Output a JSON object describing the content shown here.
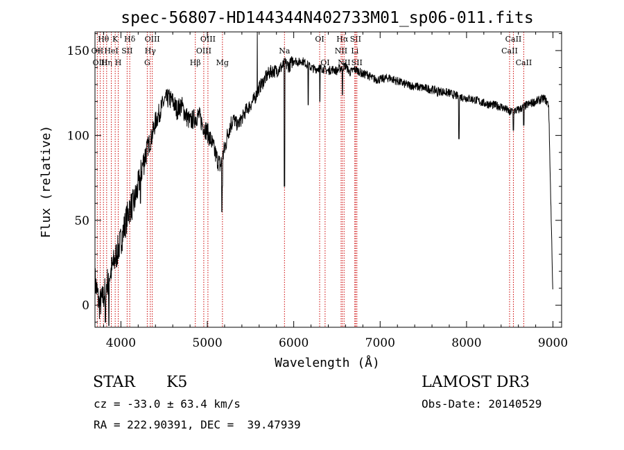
{
  "chart_data": {
    "type": "line",
    "title": "spec-56807-HD144344N402733M01_sp06-011.fits",
    "xlabel": "Wavelength (Å)",
    "ylabel": "Flux (relative)",
    "xlim": [
      3700,
      9100
    ],
    "ylim": [
      -13,
      161
    ],
    "xticks": [
      4000,
      5000,
      6000,
      7000,
      8000,
      9000
    ],
    "yticks": [
      0,
      50,
      100,
      150
    ],
    "grid": false,
    "line_color": "#000000",
    "marker_color": "#cc0000",
    "series": [
      {
        "x": [
          3700,
          3750,
          3800,
          3850,
          3900,
          3950,
          4000,
          4050,
          4100,
          4150,
          4200,
          4250,
          4300,
          4350,
          4400,
          4450,
          4500,
          4550,
          4600,
          4650,
          4700,
          4750,
          4800,
          4850,
          4900,
          4950,
          5000,
          5050,
          5100,
          5150,
          5200,
          5250,
          5300,
          5350,
          5400,
          5450,
          5500,
          5550,
          5600,
          5650,
          5700,
          5750,
          5800,
          5850,
          5900,
          5950,
          6000,
          6050,
          6100,
          6150,
          6200,
          6250,
          6300,
          6350,
          6400,
          6450,
          6500,
          6550,
          6600,
          6650,
          6700,
          6750,
          6800,
          6850,
          6900,
          6950,
          7000,
          7100,
          7200,
          7300,
          7400,
          7500,
          7600,
          7700,
          7800,
          7900,
          8000,
          8100,
          8200,
          8300,
          8400,
          8500,
          8600,
          8700,
          8800,
          8900,
          8950,
          9000
        ],
        "y": [
          15,
          0,
          5,
          15,
          22,
          30,
          38,
          48,
          57,
          60,
          70,
          82,
          92,
          98,
          108,
          114,
          120,
          122,
          120,
          115,
          118,
          112,
          108,
          110,
          112,
          106,
          102,
          96,
          88,
          82,
          92,
          104,
          110,
          106,
          110,
          115,
          118,
          122,
          128,
          132,
          136,
          138,
          138,
          140,
          142,
          141,
          145,
          143,
          144,
          142,
          140,
          139,
          140,
          139,
          138,
          139,
          138,
          140,
          141,
          137,
          139,
          138,
          136,
          136,
          134,
          133,
          133,
          134,
          132,
          130,
          129,
          128,
          127,
          126,
          125,
          123,
          122,
          121,
          119,
          118,
          117,
          114,
          115,
          118,
          120,
          122,
          118,
          5
        ],
        "absorption_dips": [
          {
            "x": 3820,
            "y": -10
          },
          {
            "x": 3860,
            "y": -12
          },
          {
            "x": 4227,
            "y": 60
          },
          {
            "x": 5170,
            "y": 55
          },
          {
            "x": 5175,
            "y": 70
          },
          {
            "x": 5893,
            "y": 70
          },
          {
            "x": 6168,
            "y": 118
          },
          {
            "x": 6302,
            "y": 120
          },
          {
            "x": 6563,
            "y": 124
          },
          {
            "x": 7665,
            "y": 123
          },
          {
            "x": 7912,
            "y": 98
          },
          {
            "x": 8498,
            "y": 112
          },
          {
            "x": 8542,
            "y": 103
          },
          {
            "x": 8662,
            "y": 106
          }
        ],
        "spike": {
          "x": 5577,
          "y": 161
        }
      }
    ],
    "line_markers": [
      {
        "label": "Hθ",
        "x": 3798,
        "row": 0
      },
      {
        "label": "OII",
        "x": 3727,
        "row": 1
      },
      {
        "label": "OIII",
        "x": 3760,
        "row": 2
      },
      {
        "label": "Hη",
        "x": 3835,
        "row": 2
      },
      {
        "label": "HeI",
        "x": 3889,
        "row": 1
      },
      {
        "label": "K",
        "x": 3934,
        "row": 0
      },
      {
        "label": "H",
        "x": 3969,
        "row": 2
      },
      {
        "label": "SII",
        "x": 4072,
        "row": 1
      },
      {
        "label": "Hδ",
        "x": 4102,
        "row": 0
      },
      {
        "label": "OIII",
        "x": 4363,
        "row": 0
      },
      {
        "label": "Hγ",
        "x": 4340,
        "row": 1
      },
      {
        "label": "G",
        "x": 4305,
        "row": 2
      },
      {
        "label": "Hβ",
        "x": 4861,
        "row": 2
      },
      {
        "label": "OIII",
        "x": 5007,
        "row": 0
      },
      {
        "label": "OIII",
        "x": 4959,
        "row": 1
      },
      {
        "label": "Mg",
        "x": 5175,
        "row": 2
      },
      {
        "label": "Na",
        "x": 5893,
        "row": 1
      },
      {
        "label": "OI",
        "x": 6300,
        "row": 0
      },
      {
        "label": "OI",
        "x": 6363,
        "row": 2
      },
      {
        "label": "Hα",
        "x": 6563,
        "row": 0
      },
      {
        "label": "SII",
        "x": 6716,
        "row": 0
      },
      {
        "label": "NII",
        "x": 6548,
        "row": 1
      },
      {
        "label": "Li",
        "x": 6707,
        "row": 1
      },
      {
        "label": "NII",
        "x": 6583,
        "row": 2
      },
      {
        "label": "SII",
        "x": 6731,
        "row": 2
      },
      {
        "label": "CaII",
        "x": 8542,
        "row": 0
      },
      {
        "label": "CaII",
        "x": 8498,
        "row": 1
      },
      {
        "label": "CaII",
        "x": 8662,
        "row": 2
      }
    ]
  },
  "info": {
    "class": "STAR",
    "subclass": "K5",
    "survey": "LAMOST DR3",
    "cz": "cz = -33.0 ± 63.4 km/s",
    "obs_date": "Obs-Date: 20140529",
    "radec": "RA = 222.90391, DEC =  39.47939"
  }
}
